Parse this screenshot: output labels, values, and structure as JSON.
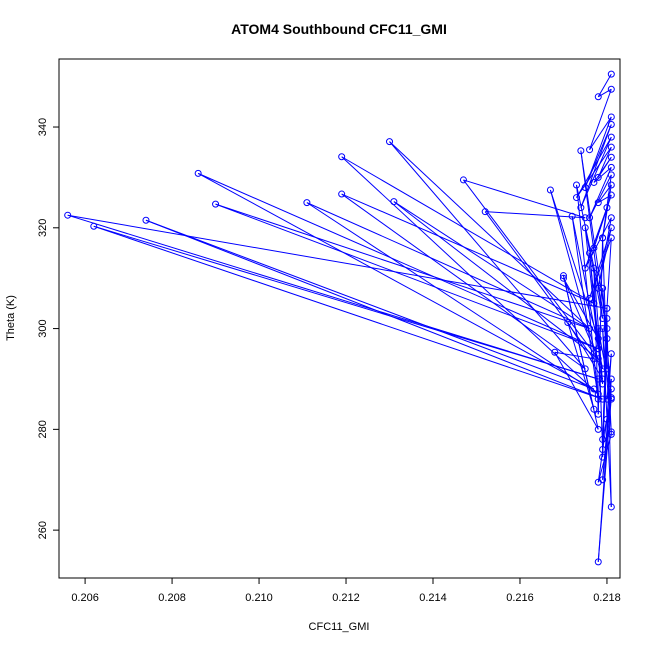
{
  "chart_data": {
    "type": "scatter",
    "title": "ATOM4 Southbound CFC11_GMI",
    "xlabel": "CFC11_GMI",
    "ylabel": "Theta (K)",
    "xlim": [
      0.2054,
      0.2183
    ],
    "ylim": [
      250.5,
      353.5
    ],
    "xticks": [
      0.206,
      0.208,
      0.21,
      0.212,
      0.214,
      0.216,
      0.218
    ],
    "yticks": [
      260,
      280,
      300,
      320,
      340
    ],
    "xtick_labels": [
      "0.206",
      "0.208",
      "0.210",
      "0.212",
      "0.214",
      "0.216",
      "0.218"
    ],
    "ytick_labels": [
      "260",
      "280",
      "300",
      "320",
      "340"
    ],
    "grid": false,
    "connected": true,
    "color": "#0000ff",
    "series": [
      {
        "x": [
          0.2181,
          0.2178,
          0.2181,
          0.2176,
          0.2181,
          0.2175,
          0.2181,
          0.2174,
          0.2181,
          0.2173,
          0.2181,
          0.2178,
          0.2181,
          0.2177,
          0.2181,
          0.2176,
          0.2181,
          0.2179,
          0.2181,
          0.2178,
          0.2181,
          0.2177,
          0.218,
          0.2175,
          0.2181,
          0.2178,
          0.2181,
          0.2176,
          0.2181,
          0.218,
          0.2056,
          0.2178,
          0.2062,
          0.2179,
          0.2074,
          0.2177,
          0.2086,
          0.2178,
          0.209,
          0.2176,
          0.2111,
          0.2178,
          0.2119,
          0.2177,
          0.2119,
          0.2175,
          0.213,
          0.2176,
          0.2131,
          0.2178,
          0.2147,
          0.2175,
          0.2152,
          0.2177,
          0.2168,
          0.2178,
          0.217,
          0.2177,
          0.2171,
          0.2179,
          0.2167,
          0.2178,
          0.217,
          0.2179,
          0.2172,
          0.2178,
          0.2173,
          0.218,
          0.2174,
          0.2179,
          0.2175,
          0.2178,
          0.2176,
          0.2179,
          0.2177,
          0.2178,
          0.2179,
          0.218,
          0.2179,
          0.2181,
          0.2178,
          0.2179,
          0.218,
          0.2179,
          0.218,
          0.2181,
          0.2178,
          0.218,
          0.2181,
          0.218,
          0.2181,
          0.2179,
          0.2181,
          0.2178,
          0.2181,
          0.2179,
          0.218,
          0.2181,
          0.2179,
          0.2181
        ],
        "y": [
          350.5,
          346.0,
          347.5,
          335.5,
          342.0,
          328.0,
          340.5,
          324.0,
          338.0,
          326.0,
          336.0,
          330.0,
          334.0,
          329.0,
          332.0,
          322.0,
          330.5,
          318.0,
          328.5,
          325.0,
          326.5,
          316.0,
          324.0,
          312.0,
          322.0,
          308.0,
          320.0,
          306.0,
          318.0,
          304.0,
          322.5,
          290.0,
          320.3,
          286.0,
          321.5,
          288.0,
          330.8,
          296.0,
          324.7,
          300.0,
          325.0,
          287.0,
          334.1,
          305.0,
          326.7,
          292.0,
          337.1,
          300.0,
          325.2,
          294.0,
          329.5,
          322.0,
          323.2,
          294.0,
          295.3,
          280.0,
          310.5,
          284.0,
          301.2,
          290.0,
          327.5,
          298.0,
          310.0,
          292.0,
          322.3,
          286.0,
          328.5,
          300.0,
          335.3,
          302.0,
          320.0,
          296.0,
          315.0,
          289.0,
          312.0,
          283.0,
          318.0,
          292.0,
          308.0,
          286.0,
          300.0,
          276.0,
          304.0,
          274.5,
          298.0,
          279.0,
          269.5,
          282.0,
          295.0,
          286.0,
          288.0,
          270.0,
          290.0,
          253.7,
          286.3,
          278.0,
          302.0,
          264.6,
          300.0,
          279.5
        ]
      }
    ]
  }
}
